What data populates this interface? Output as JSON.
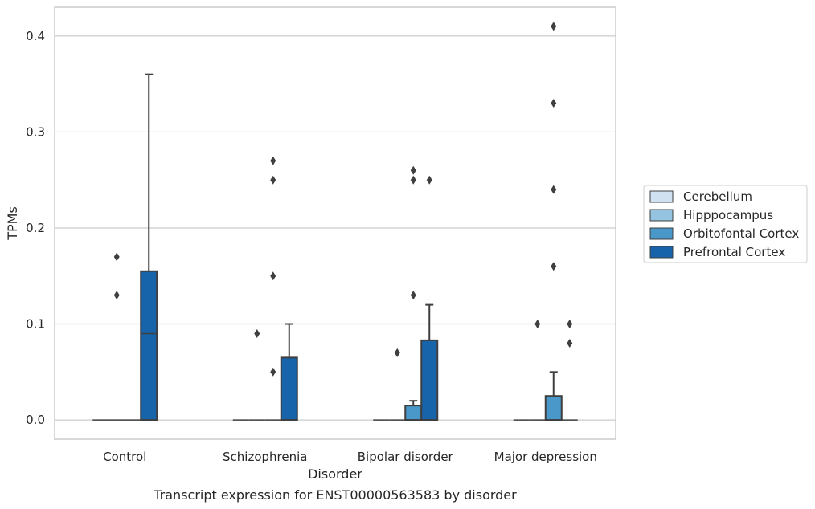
{
  "chart_data": {
    "type": "box",
    "xlabel": "Disorder",
    "ylabel": "TPMs",
    "caption": "Transcript expression for ENST00000563583 by disorder",
    "ylim": [
      -0.02,
      0.43
    ],
    "yticks": [
      {
        "value": 0.0,
        "label": "0.0"
      },
      {
        "value": 0.1,
        "label": "0.1"
      },
      {
        "value": 0.2,
        "label": "0.2"
      },
      {
        "value": 0.3,
        "label": "0.3"
      },
      {
        "value": 0.4,
        "label": "0.4"
      }
    ],
    "grid": "horizontal",
    "legend_position": "right-center",
    "categories": [
      "Control",
      "Schizophrenia",
      "Bipolar disorder",
      "Major depression"
    ],
    "series": [
      {
        "name": "Cerebellum",
        "color": "#d0e1f2",
        "boxes": [
          {
            "q1": 0,
            "median": 0,
            "q3": 0,
            "whisker_low": 0,
            "whisker_high": 0,
            "outliers": []
          },
          {
            "q1": 0,
            "median": 0,
            "q3": 0,
            "whisker_low": 0,
            "whisker_high": 0,
            "outliers": []
          },
          {
            "q1": 0,
            "median": 0,
            "q3": 0,
            "whisker_low": 0,
            "whisker_high": 0,
            "outliers": []
          },
          {
            "q1": 0,
            "median": 0,
            "q3": 0,
            "whisker_low": 0,
            "whisker_high": 0,
            "outliers": []
          }
        ]
      },
      {
        "name": "Hipppocampus",
        "color": "#94c4df",
        "boxes": [
          {
            "q1": 0,
            "median": 0,
            "q3": 0,
            "whisker_low": 0,
            "whisker_high": 0,
            "outliers": [
              0.13,
              0.17
            ]
          },
          {
            "q1": 0,
            "median": 0,
            "q3": 0,
            "whisker_low": 0,
            "whisker_high": 0,
            "outliers": [
              0.09
            ]
          },
          {
            "q1": 0,
            "median": 0,
            "q3": 0,
            "whisker_low": 0,
            "whisker_high": 0,
            "outliers": [
              0.07
            ]
          },
          {
            "q1": 0,
            "median": 0,
            "q3": 0,
            "whisker_low": 0,
            "whisker_high": 0,
            "outliers": [
              0.1
            ]
          }
        ]
      },
      {
        "name": "Orbitofontal Cortex",
        "color": "#4a98c9",
        "boxes": [
          {
            "q1": 0,
            "median": 0,
            "q3": 0,
            "whisker_low": 0,
            "whisker_high": 0,
            "outliers": []
          },
          {
            "q1": 0,
            "median": 0,
            "q3": 0,
            "whisker_low": 0,
            "whisker_high": 0,
            "outliers": [
              0.05,
              0.15,
              0.25,
              0.27
            ]
          },
          {
            "q1": 0,
            "median": 0,
            "q3": 0.015,
            "whisker_low": 0,
            "whisker_high": 0.02,
            "outliers": [
              0.13,
              0.25,
              0.26
            ]
          },
          {
            "q1": 0,
            "median": 0,
            "q3": 0.025,
            "whisker_low": 0,
            "whisker_high": 0.05,
            "outliers": [
              0.16,
              0.24,
              0.33,
              0.41
            ]
          }
        ]
      },
      {
        "name": "Prefrontal Cortex",
        "color": "#1764ab",
        "boxes": [
          {
            "q1": 0,
            "median": 0.09,
            "q3": 0.155,
            "whisker_low": 0,
            "whisker_high": 0.36,
            "outliers": []
          },
          {
            "q1": 0,
            "median": 0,
            "q3": 0.065,
            "whisker_low": 0,
            "whisker_high": 0.1,
            "outliers": []
          },
          {
            "q1": 0,
            "median": 0,
            "q3": 0.083,
            "whisker_low": 0,
            "whisker_high": 0.12,
            "outliers": [
              0.25
            ]
          },
          {
            "q1": 0,
            "median": 0,
            "q3": 0,
            "whisker_low": 0,
            "whisker_high": 0,
            "outliers": [
              0.08,
              0.1
            ]
          }
        ]
      }
    ]
  }
}
